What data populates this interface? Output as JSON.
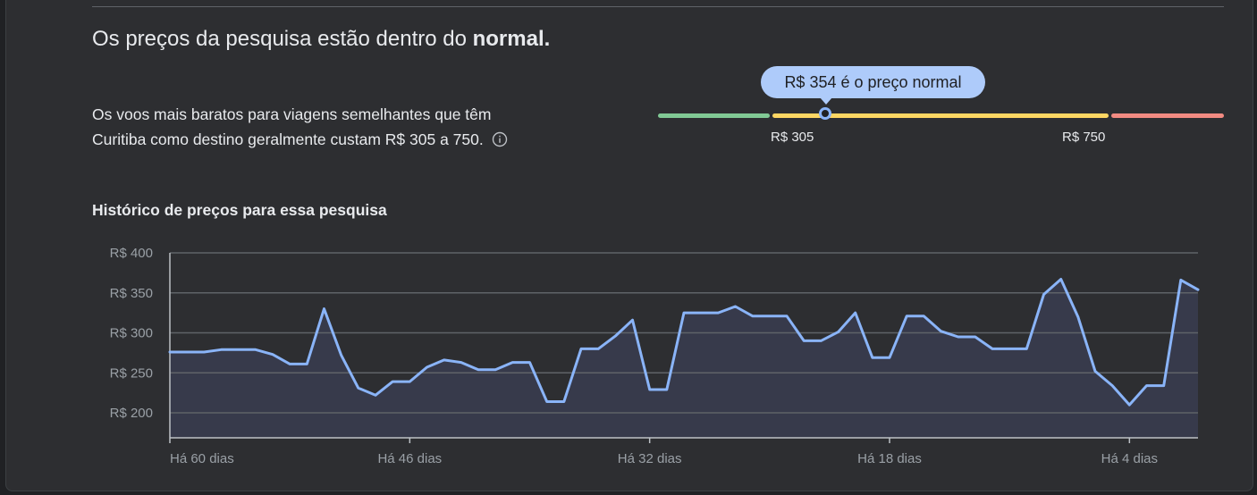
{
  "summary": {
    "headline": "Os preços da pesquisa estão dentro do",
    "headline_bold": "normal.",
    "description": "Os voos mais baratos para viagens semelhantes que têm Curitiba como destino geralmente custam R$ 305 a 750.",
    "info_icon": "info-circle-icon"
  },
  "price_range": {
    "bubble_text": "R$ 354 é o preço normal",
    "current_price": 354,
    "low_label": "R$ 305",
    "high_label": "R$ 750",
    "colors": {
      "low": "#81c995",
      "typical": "#fdd663",
      "high": "#f28b82",
      "marker": "#8ab4f8"
    }
  },
  "history": {
    "title": "Histórico de preços para essa pesquisa"
  },
  "chart_data": {
    "type": "area",
    "title": "Histórico de preços para essa pesquisa",
    "xlabel": "",
    "ylabel": "",
    "y_ticks": [
      200,
      250,
      300,
      350,
      400
    ],
    "y_tick_labels": [
      "R$ 200",
      "R$ 250",
      "R$ 300",
      "R$ 350",
      "R$ 400"
    ],
    "x_ticks": [
      -60,
      -46,
      -32,
      -18,
      -4
    ],
    "x_tick_labels": [
      "Há 60 dias",
      "Há 46 dias",
      "Há 32 dias",
      "Há 18 dias",
      "Há 4 dias"
    ],
    "xlim": [
      -60,
      0
    ],
    "ylim": [
      170,
      400
    ],
    "grid": true,
    "line_color": "#8ab4f8",
    "x": [
      -60,
      -59,
      -58,
      -57,
      -56,
      -55,
      -54,
      -53,
      -52,
      -51,
      -50,
      -49,
      -48,
      -47,
      -46,
      -45,
      -44,
      -43,
      -42,
      -41,
      -40,
      -39,
      -38,
      -37,
      -36,
      -35,
      -34,
      -33,
      -32,
      -31,
      -30,
      -29,
      -28,
      -27,
      -26,
      -25,
      -24,
      -23,
      -22,
      -21,
      -20,
      -19,
      -18,
      -17,
      -16,
      -15,
      -14,
      -13,
      -12,
      -11,
      -10,
      -9,
      -8,
      -7,
      -6,
      -5,
      -4,
      -3,
      -2,
      -1,
      0
    ],
    "values": [
      276,
      276,
      276,
      279,
      279,
      279,
      273,
      261,
      261,
      330,
      272,
      231,
      222,
      239,
      239,
      257,
      266,
      263,
      254,
      254,
      263,
      263,
      214,
      214,
      280,
      280,
      296,
      316,
      229,
      229,
      325,
      325,
      325,
      333,
      321,
      321,
      321,
      290,
      290,
      301,
      325,
      269,
      269,
      321,
      321,
      302,
      295,
      295,
      280,
      280,
      280,
      348,
      367,
      320,
      252,
      234,
      210,
      234,
      234,
      366,
      354
    ]
  }
}
